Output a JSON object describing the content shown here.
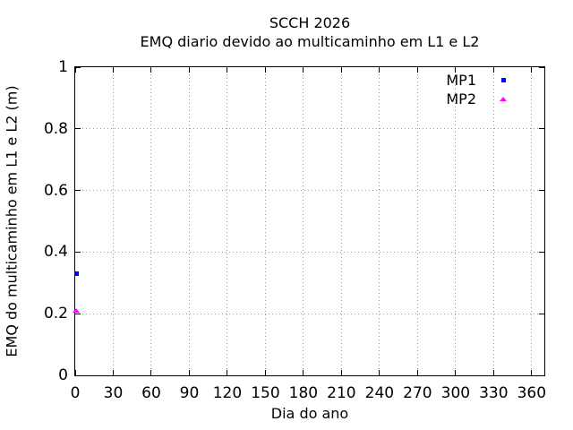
{
  "chart_data": {
    "type": "scatter",
    "title": "SCCH 2026",
    "subtitle": "EMQ diario devido ao multicaminho em L1 e L2",
    "xlabel": "Dia do ano",
    "ylabel": "EMQ do multicaminho em L1 e L2 (m)",
    "xlim": [
      0,
      370
    ],
    "ylim": [
      0,
      1
    ],
    "x_ticks": [
      0,
      30,
      60,
      90,
      120,
      150,
      180,
      210,
      240,
      270,
      300,
      330,
      360
    ],
    "y_ticks": [
      0,
      0.2,
      0.4,
      0.6,
      0.8,
      1
    ],
    "grid": true,
    "legend_position": "top-right-inside",
    "series": [
      {
        "name": "MP1",
        "marker": "square",
        "color": "#0000ff",
        "points": [
          [
            1,
            0.33
          ]
        ]
      },
      {
        "name": "MP2",
        "marker": "triangle",
        "color": "#ff00ff",
        "points": [
          [
            1,
            0.21
          ]
        ]
      }
    ],
    "colors": {
      "background": "#ffffff",
      "axis": "#000000",
      "text": "#000000",
      "grid": "#9a9a9a",
      "mp1": "#0000ff",
      "mp2": "#ff00ff"
    }
  }
}
